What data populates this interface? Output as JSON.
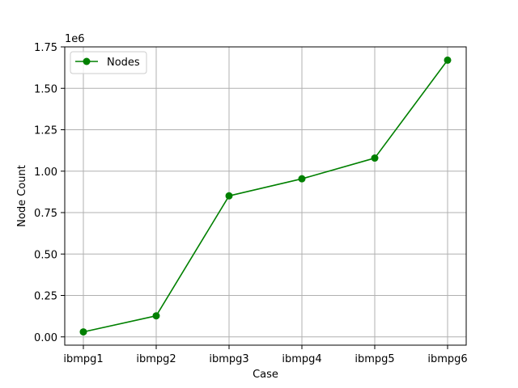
{
  "chart_data": {
    "type": "line",
    "categories": [
      "ibmpg1",
      "ibmpg2",
      "ibmpg3",
      "ibmpg4",
      "ibmpg5",
      "ibmpg6"
    ],
    "series": [
      {
        "name": "Nodes",
        "values": [
          30000,
          127000,
          851000,
          954000,
          1079000,
          1670000
        ],
        "color": "#008000",
        "marker": "circle"
      }
    ],
    "xlabel": "Case",
    "ylabel": "Node Count",
    "y_offset_text": "1e6",
    "ylim": [
      -50000,
      1750000
    ],
    "yticks": [
      0,
      250000,
      500000,
      750000,
      1000000,
      1250000,
      1500000,
      1750000
    ],
    "ytick_labels": [
      "0.00",
      "0.25",
      "0.50",
      "0.75",
      "1.00",
      "1.25",
      "1.50",
      "1.75"
    ],
    "grid": true,
    "legend_position": "top-left"
  }
}
